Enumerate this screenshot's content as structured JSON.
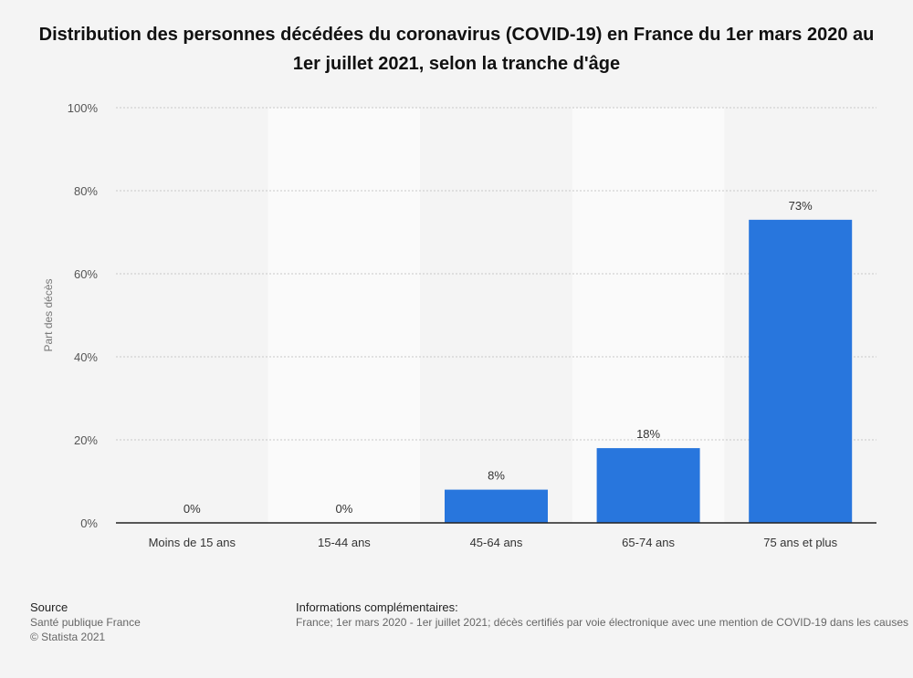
{
  "title": "Distribution des personnes décédées du coronavirus (COVID-19) en France du 1er mars 2020 au 1er juillet 2021, selon la tranche d'âge",
  "chart_data": {
    "type": "bar",
    "categories": [
      "Moins de 15 ans",
      "15-44 ans",
      "45-64 ans",
      "65-74 ans",
      "75 ans et plus"
    ],
    "values": [
      0,
      0,
      8,
      18,
      73
    ],
    "data_labels": [
      "0%",
      "0%",
      "8%",
      "18%",
      "73%"
    ],
    "ylabel": "Part des décès",
    "ylim": [
      0,
      100
    ],
    "yticks": [
      0,
      20,
      40,
      60,
      80,
      100
    ],
    "ytick_labels": [
      "0%",
      "20%",
      "40%",
      "60%",
      "80%",
      "100%"
    ],
    "grid": true,
    "bar_color": "#2876dd"
  },
  "footer": {
    "source_heading": "Source",
    "source_lines": [
      "Santé publique France",
      "© Statista 2021"
    ],
    "info_heading": "Informations complémentaires:",
    "info_text": "France; 1er mars 2020 - 1er juillet 2021; décès certifiés par voie électronique avec une mention de COVID-19 dans les causes"
  }
}
